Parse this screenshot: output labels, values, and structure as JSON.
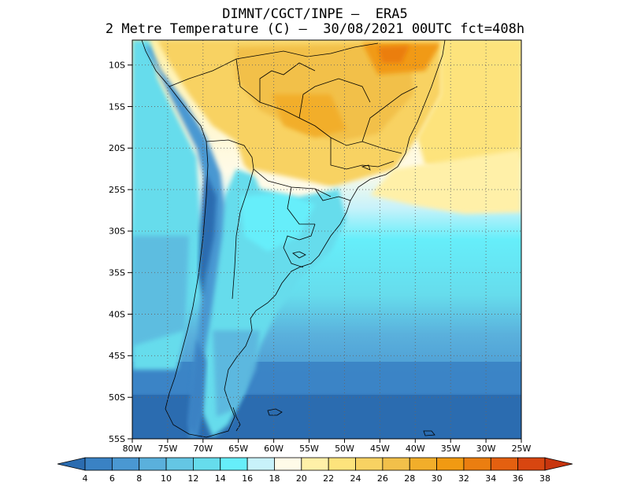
{
  "title": {
    "line1": "DIMNT/CGCT/INPE –  ERA5",
    "line2": "2 Metre Temperature (C) –  30/08/2021 00UTC fct=408h"
  },
  "map": {
    "region": "South America (southern half)",
    "lon_range": [
      -80,
      -25
    ],
    "lat_range": [
      -55,
      -7
    ],
    "lat_ticks": [
      "10S",
      "15S",
      "20S",
      "25S",
      "30S",
      "35S",
      "40S",
      "45S",
      "50S",
      "55S"
    ],
    "lon_ticks": [
      "80W",
      "75W",
      "70W",
      "65W",
      "60W",
      "55W",
      "50W",
      "45W",
      "40W",
      "35W",
      "30W",
      "25W"
    ],
    "gridlines": "dotted"
  },
  "colorbar": {
    "labels": [
      "4",
      "6",
      "8",
      "10",
      "12",
      "14",
      "16",
      "18",
      "20",
      "22",
      "24",
      "26",
      "28",
      "30",
      "32",
      "34",
      "36",
      "38"
    ],
    "colors": [
      "#2b6cb0",
      "#3a82c4",
      "#4a98d2",
      "#5ab0dc",
      "#64c6e4",
      "#66dcec",
      "#66eefa",
      "#c8f2fa",
      "#fffbe8",
      "#fff0a8",
      "#fde37c",
      "#f8d262",
      "#f2c04a",
      "#f2ae2a",
      "#f19a12",
      "#eb7e10",
      "#e46010",
      "#d84610",
      "#c8350e"
    ]
  }
}
